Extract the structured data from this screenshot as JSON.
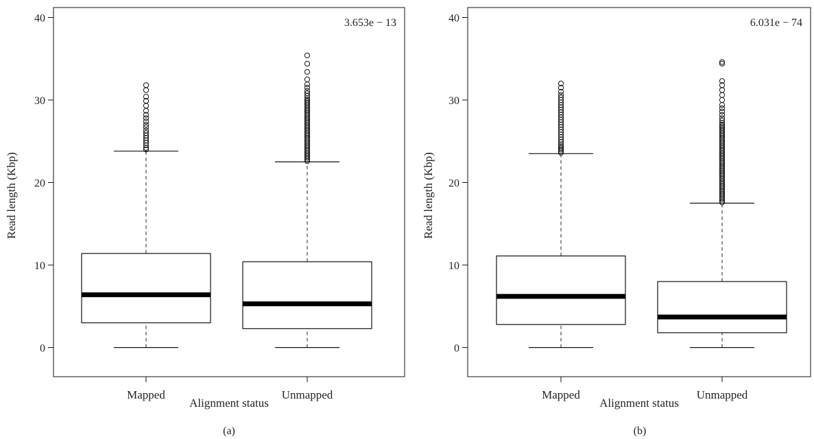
{
  "chart_data": [
    {
      "type": "box",
      "panel_label": "(a)",
      "annotation": "3.653e − 13",
      "xlabel": "Alignment status",
      "ylabel": "Read length (Kbp)",
      "ylim": [
        -2,
        41
      ],
      "yticks": [
        0,
        10,
        20,
        30,
        40
      ],
      "categories": [
        "Mapped",
        "Unmapped"
      ],
      "boxes": [
        {
          "min": 0,
          "q1": 3.0,
          "median": 6.4,
          "q3": 11.4,
          "max": 23.8,
          "outliers": [
            24.0,
            24.2,
            24.5,
            24.8,
            25.1,
            25.4,
            25.7,
            26.0,
            26.3,
            26.7,
            27.0,
            27.4,
            27.8,
            28.2,
            28.7,
            29.3,
            29.9,
            30.4,
            31.2,
            31.8
          ]
        },
        {
          "min": 0,
          "q1": 2.3,
          "median": 5.3,
          "q3": 10.4,
          "max": 22.5,
          "outliers": [
            22.6,
            22.8,
            23.0,
            23.2,
            23.4,
            23.6,
            23.8,
            24.0,
            24.2,
            24.4,
            24.6,
            24.8,
            25.0,
            25.2,
            25.4,
            25.6,
            25.8,
            26.0,
            26.2,
            26.4,
            26.6,
            26.8,
            27.0,
            27.2,
            27.4,
            27.6,
            27.8,
            28.0,
            28.2,
            28.4,
            28.6,
            28.8,
            29.0,
            29.2,
            29.4,
            29.6,
            29.8,
            30.0,
            30.2,
            30.5,
            30.8,
            31.1,
            31.5,
            31.9,
            32.5,
            33.4,
            34.4,
            35.4
          ]
        }
      ]
    },
    {
      "type": "box",
      "panel_label": "(b)",
      "annotation": "6.031e − 74",
      "xlabel": "Alignment status",
      "ylabel": "Read length (Kbp)",
      "ylim": [
        -2,
        41
      ],
      "yticks": [
        0,
        10,
        20,
        30,
        40
      ],
      "categories": [
        "Mapped",
        "Unmapped"
      ],
      "boxes": [
        {
          "min": 0,
          "q1": 2.8,
          "median": 6.2,
          "q3": 11.1,
          "max": 23.5,
          "outliers": [
            23.6,
            23.8,
            24.0,
            24.2,
            24.4,
            24.6,
            24.9,
            25.2,
            25.5,
            25.8,
            26.1,
            26.4,
            26.7,
            27.0,
            27.3,
            27.6,
            27.9,
            28.2,
            28.5,
            28.8,
            29.1,
            29.4,
            29.7,
            30.0,
            30.3,
            30.6,
            31.0,
            31.5,
            32.0
          ]
        },
        {
          "min": 0,
          "q1": 1.8,
          "median": 3.7,
          "q3": 8.0,
          "max": 17.5,
          "outliers": [
            17.6,
            17.8,
            18.0,
            18.2,
            18.4,
            18.6,
            18.8,
            19.0,
            19.2,
            19.4,
            19.6,
            19.8,
            20.0,
            20.2,
            20.4,
            20.6,
            20.8,
            21.0,
            21.2,
            21.4,
            21.6,
            21.8,
            22.0,
            22.2,
            22.4,
            22.6,
            22.8,
            23.0,
            23.2,
            23.4,
            23.6,
            23.8,
            24.0,
            24.2,
            24.4,
            24.6,
            24.8,
            25.0,
            25.2,
            25.4,
            25.6,
            25.8,
            26.0,
            26.2,
            26.4,
            26.6,
            26.8,
            27.0,
            27.2,
            27.5,
            27.8,
            28.2,
            28.6,
            29.0,
            29.4,
            30.0,
            30.6,
            31.2,
            31.8,
            32.3,
            34.4,
            34.6
          ]
        }
      ]
    }
  ]
}
